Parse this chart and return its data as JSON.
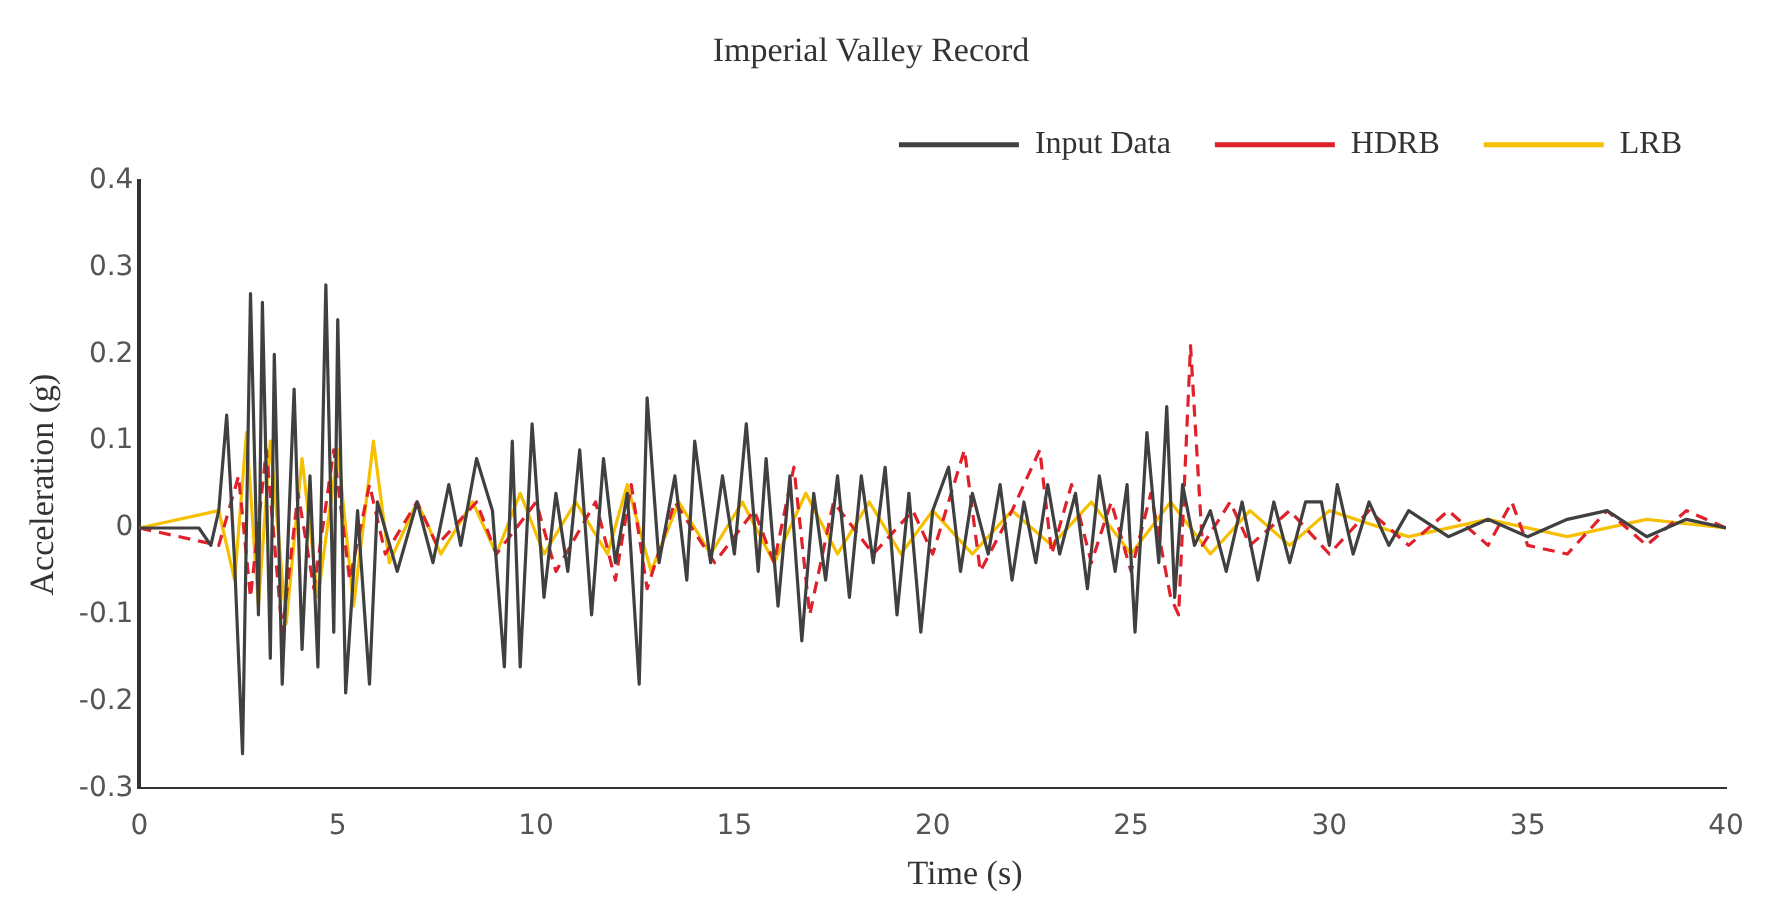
{
  "chart_data": {
    "type": "line",
    "title": "Imperial Valley Record",
    "xlabel": "Time (s)",
    "ylabel": "Acceleration (g)",
    "xlim": [
      0,
      40
    ],
    "xticks": [
      0,
      5,
      10,
      15,
      20,
      25,
      30,
      35,
      40
    ],
    "ylim": [
      -0.3,
      0.4
    ],
    "yticks": [
      -0.3,
      -0.2,
      -0.1,
      0,
      0.1,
      0.2,
      0.3,
      0.4
    ],
    "grid": false,
    "legend": "top right",
    "marker": "none",
    "series": [
      {
        "name": "Input Data",
        "color": "#404040",
        "line_style": "solid",
        "x": [
          0,
          1.5,
          1.8,
          2.0,
          2.2,
          2.4,
          2.6,
          2.8,
          3.0,
          3.1,
          3.3,
          3.4,
          3.6,
          3.9,
          4.1,
          4.3,
          4.5,
          4.7,
          4.9,
          5.0,
          5.2,
          5.5,
          5.8,
          6.0,
          6.5,
          7.0,
          7.4,
          7.8,
          8.1,
          8.5,
          8.9,
          9.2,
          9.4,
          9.6,
          9.9,
          10.2,
          10.5,
          10.8,
          11.1,
          11.4,
          11.7,
          12.0,
          12.3,
          12.6,
          12.8,
          13.1,
          13.5,
          13.8,
          14.0,
          14.4,
          14.7,
          15.0,
          15.3,
          15.6,
          15.8,
          16.1,
          16.4,
          16.7,
          17.0,
          17.3,
          17.6,
          17.9,
          18.2,
          18.5,
          18.8,
          19.1,
          19.4,
          19.7,
          20.0,
          20.4,
          20.7,
          21.0,
          21.4,
          21.7,
          22.0,
          22.3,
          22.6,
          22.9,
          23.2,
          23.6,
          23.9,
          24.2,
          24.6,
          24.9,
          25.1,
          25.4,
          25.7,
          25.9,
          26.1,
          26.3,
          26.6,
          27.0,
          27.4,
          27.8,
          28.2,
          28.6,
          29.0,
          29.4,
          29.8,
          30.0,
          30.2,
          30.6,
          31.0,
          31.5,
          32,
          33,
          34,
          35,
          36,
          37,
          38,
          39,
          40
        ],
        "values": [
          0,
          0,
          -0.02,
          0.02,
          0.13,
          -0.04,
          -0.26,
          0.27,
          -0.1,
          0.26,
          -0.15,
          0.2,
          -0.18,
          0.16,
          -0.14,
          0.06,
          -0.16,
          0.28,
          -0.12,
          0.24,
          -0.19,
          0.02,
          -0.18,
          0.03,
          -0.05,
          0.03,
          -0.04,
          0.05,
          -0.02,
          0.08,
          0.02,
          -0.16,
          0.1,
          -0.16,
          0.12,
          -0.08,
          0.04,
          -0.05,
          0.09,
          -0.1,
          0.08,
          -0.04,
          0.04,
          -0.18,
          0.15,
          -0.04,
          0.06,
          -0.06,
          0.1,
          -0.04,
          0.06,
          -0.03,
          0.12,
          -0.05,
          0.08,
          -0.09,
          0.06,
          -0.13,
          0.04,
          -0.06,
          0.06,
          -0.08,
          0.06,
          -0.04,
          0.07,
          -0.1,
          0.04,
          -0.12,
          0.02,
          0.07,
          -0.05,
          0.04,
          -0.03,
          0.05,
          -0.06,
          0.03,
          -0.04,
          0.05,
          -0.03,
          0.04,
          -0.07,
          0.06,
          -0.05,
          0.05,
          -0.12,
          0.11,
          -0.04,
          0.14,
          -0.08,
          0.05,
          -0.02,
          0.02,
          -0.05,
          0.03,
          -0.06,
          0.03,
          -0.04,
          0.03,
          0.03,
          -0.02,
          0.05,
          -0.03,
          0.03,
          -0.02,
          0.02,
          -0.01,
          0.01,
          -0.01,
          0.01,
          0.02,
          -0.01,
          0.01,
          0
        ]
      },
      {
        "name": "HDRB",
        "color": "#e0202a",
        "line_style": "dashed",
        "x": [
          0,
          2.0,
          2.5,
          2.8,
          3.2,
          3.6,
          4.0,
          4.4,
          4.9,
          5.3,
          5.8,
          6.2,
          7.0,
          7.5,
          8.5,
          9.0,
          10.0,
          10.5,
          11.5,
          12.0,
          12.4,
          12.8,
          13.5,
          14.5,
          15.5,
          16.0,
          16.5,
          16.9,
          17.5,
          18.5,
          19.5,
          20.0,
          20.8,
          21.2,
          22.0,
          22.7,
          23.0,
          23.5,
          24.0,
          24.5,
          25.0,
          25.5,
          26.0,
          26.2,
          26.5,
          26.8,
          27.5,
          28.0,
          29.0,
          30.0,
          31.0,
          32.0,
          33.0,
          34.0,
          34.6,
          35.0,
          36.0,
          37.0,
          38.0,
          39.0,
          40.0
        ],
        "values": [
          0,
          -0.02,
          0.06,
          -0.08,
          0.09,
          -0.12,
          0.04,
          -0.07,
          0.09,
          -0.06,
          0.05,
          -0.03,
          0.03,
          -0.02,
          0.03,
          -0.03,
          0.03,
          -0.05,
          0.03,
          -0.06,
          0.05,
          -0.07,
          0.03,
          -0.04,
          0.02,
          -0.04,
          0.07,
          -0.1,
          0.03,
          -0.03,
          0.02,
          -0.03,
          0.09,
          -0.05,
          0.02,
          0.09,
          -0.03,
          0.05,
          -0.04,
          0.03,
          -0.05,
          0.04,
          -0.08,
          -0.1,
          0.21,
          -0.02,
          0.03,
          -0.02,
          0.02,
          -0.03,
          0.02,
          -0.02,
          0.02,
          -0.02,
          0.03,
          -0.02,
          -0.03,
          0.02,
          -0.02,
          0.02,
          0
        ]
      },
      {
        "name": "LRB",
        "color": "#f5c000",
        "line_style": "solid",
        "x": [
          0,
          2.0,
          2.4,
          2.7,
          3.0,
          3.3,
          3.7,
          4.1,
          4.5,
          5.0,
          5.4,
          5.9,
          6.3,
          7.0,
          7.6,
          8.4,
          9.0,
          9.6,
          10.2,
          11.0,
          11.8,
          12.3,
          12.9,
          13.6,
          14.4,
          15.2,
          16.0,
          16.8,
          17.6,
          18.4,
          19.2,
          20.0,
          21.0,
          22.0,
          23.0,
          24.0,
          25.0,
          26.0,
          27.0,
          28.0,
          29.0,
          30.0,
          32,
          34,
          36,
          38,
          40
        ],
        "values": [
          0,
          0.02,
          -0.06,
          0.11,
          -0.09,
          0.1,
          -0.11,
          0.08,
          -0.08,
          0.09,
          -0.09,
          0.1,
          -0.04,
          0.03,
          -0.03,
          0.03,
          -0.03,
          0.04,
          -0.03,
          0.03,
          -0.03,
          0.05,
          -0.05,
          0.03,
          -0.03,
          0.03,
          -0.04,
          0.04,
          -0.03,
          0.03,
          -0.03,
          0.02,
          -0.03,
          0.02,
          -0.02,
          0.03,
          -0.03,
          0.03,
          -0.03,
          0.02,
          -0.02,
          0.02,
          -0.01,
          0.01,
          -0.01,
          0.01,
          0
        ]
      }
    ]
  }
}
